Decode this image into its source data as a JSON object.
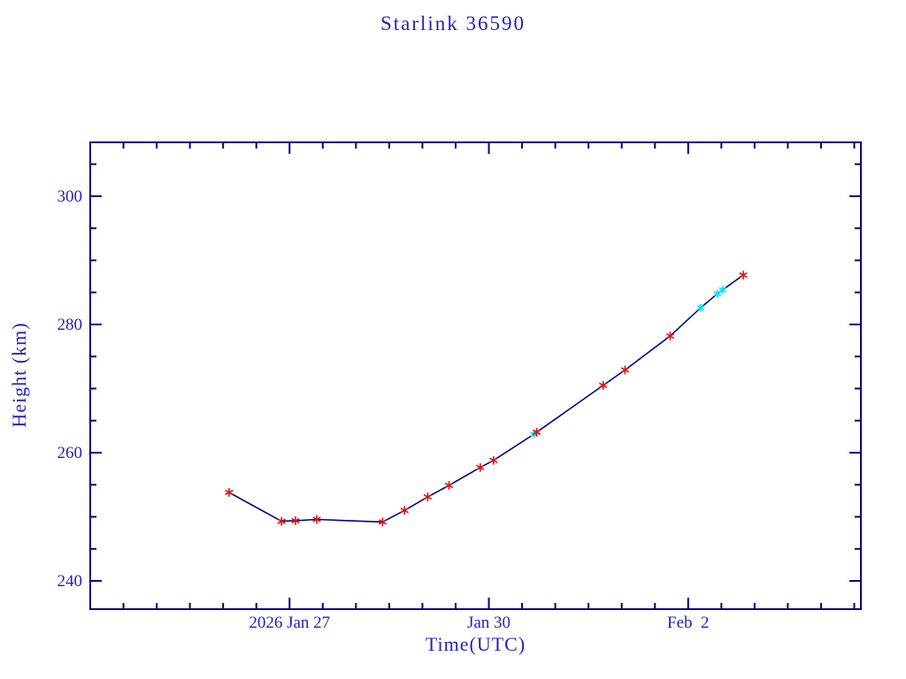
{
  "chart_data": {
    "type": "line",
    "title": "Starlink 36590",
    "xlabel": "Time(UTC)",
    "ylabel": "Height (km)",
    "legend": "none",
    "grid": false,
    "colors": {
      "text": "#2323bb",
      "axis": "#000080",
      "line": "#000090",
      "observed_marker": "#d81414",
      "predicted_marker": "#00dff2"
    },
    "x_axis": {
      "unit": "days since 2026 Jan 27 00:00 UTC",
      "lim": [
        -3.0,
        8.6
      ],
      "major_ticks": [
        0,
        3,
        6
      ],
      "major_tick_labels": [
        "2026 Jan 27",
        "Jan 30",
        "Feb  2"
      ],
      "minor_tick_step": 0.5
    },
    "y_axis": {
      "lim": [
        235.6,
        308.4
      ],
      "major_ticks": [
        240,
        260,
        280,
        300
      ],
      "major_tick_labels": [
        "240",
        "260",
        "280",
        "300"
      ],
      "minor_tick_step": 5
    },
    "series": [
      {
        "name": "observed-height",
        "marker": "asterisk",
        "color": "#d81414",
        "points": [
          {
            "day": -0.91,
            "height_km": 253.8
          },
          {
            "day": -0.12,
            "height_km": 249.3
          },
          {
            "day": 0.09,
            "height_km": 249.4
          },
          {
            "day": 0.41,
            "height_km": 249.6
          },
          {
            "day": 1.4,
            "height_km": 249.2
          },
          {
            "day": 1.73,
            "height_km": 251.0
          },
          {
            "day": 2.08,
            "height_km": 253.1
          },
          {
            "day": 2.4,
            "height_km": 254.9
          },
          {
            "day": 2.87,
            "height_km": 257.7
          },
          {
            "day": 3.07,
            "height_km": 258.8
          },
          {
            "day": 3.72,
            "height_km": 263.2
          },
          {
            "day": 4.72,
            "height_km": 270.5
          },
          {
            "day": 5.05,
            "height_km": 272.9
          },
          {
            "day": 5.73,
            "height_km": 278.2
          },
          {
            "day": 6.83,
            "height_km": 287.7
          }
        ]
      },
      {
        "name": "predicted-height",
        "marker": "asterisk-small",
        "color": "#00dff2",
        "points": [
          {
            "day": 3.68,
            "height_km": 262.9
          },
          {
            "day": 6.19,
            "height_km": 282.6
          },
          {
            "day": 6.44,
            "height_km": 284.8
          },
          {
            "day": 6.52,
            "height_km": 285.4
          }
        ]
      }
    ]
  }
}
